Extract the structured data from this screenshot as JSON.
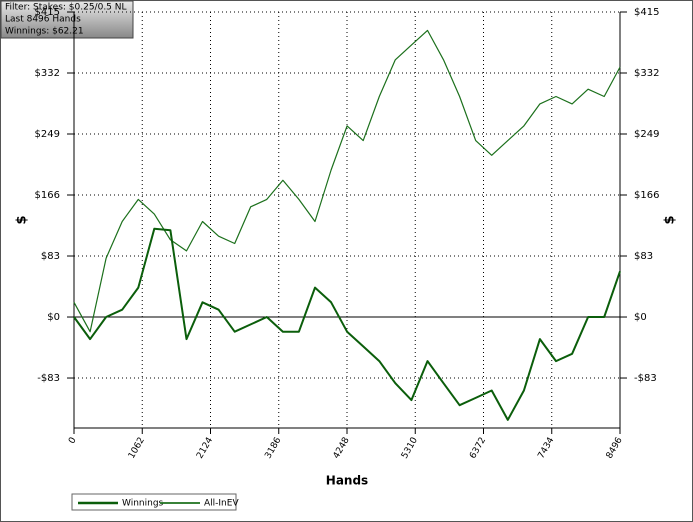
{
  "chart_data": {
    "type": "line",
    "info": [
      "Filter: Stakes: $0.25/0.5 NL",
      "Last 8496 Hands",
      "Winnings: $62.21"
    ],
    "xlabel": "Hands",
    "ylabel": "$",
    "x": [
      0,
      250,
      500,
      750,
      1000,
      1250,
      1500,
      1750,
      2000,
      2250,
      2500,
      2750,
      3000,
      3250,
      3500,
      3750,
      4000,
      4250,
      4500,
      4750,
      5000,
      5250,
      5500,
      5750,
      6000,
      6250,
      6500,
      6750,
      7000,
      7250,
      7500,
      7750,
      8000,
      8250,
      8496
    ],
    "series": [
      {
        "name": "Winnings",
        "color": "#0b5e0b",
        "width": 2,
        "values": [
          0,
          -30,
          0,
          10,
          40,
          120,
          118,
          -30,
          20,
          10,
          -20,
          -10,
          0,
          -20,
          -20,
          40,
          20,
          -20,
          -40,
          -60,
          -90,
          -113,
          -60,
          -90,
          -120,
          -110,
          -100,
          -140,
          -100,
          -30,
          -60,
          -50,
          0,
          0,
          62.21
        ]
      },
      {
        "name": "All-InEV",
        "color": "#1c701c",
        "width": 1.2,
        "values": [
          20,
          -20,
          80,
          130,
          160,
          140,
          105,
          90,
          130,
          110,
          100,
          150,
          160,
          186,
          160,
          130,
          200,
          260,
          240,
          300,
          350,
          370,
          390,
          350,
          300,
          240,
          220,
          240,
          260,
          290,
          300,
          290,
          310,
          300,
          340
        ]
      }
    ],
    "xlim": [
      0,
      8496
    ],
    "xticks": [
      0,
      1062,
      2124,
      3186,
      4248,
      5310,
      6372,
      7434,
      8496
    ],
    "ylim": [
      -151,
      415
    ],
    "yticks": [
      {
        "value": -83,
        "label": "-$83"
      },
      {
        "value": 0,
        "label": "$0"
      },
      {
        "value": 83,
        "label": "$83"
      },
      {
        "value": 166,
        "label": "$166"
      },
      {
        "value": 249,
        "label": "$249"
      },
      {
        "value": 332,
        "label": "$332"
      },
      {
        "value": 415,
        "label": "$415"
      }
    ],
    "grid": true
  }
}
